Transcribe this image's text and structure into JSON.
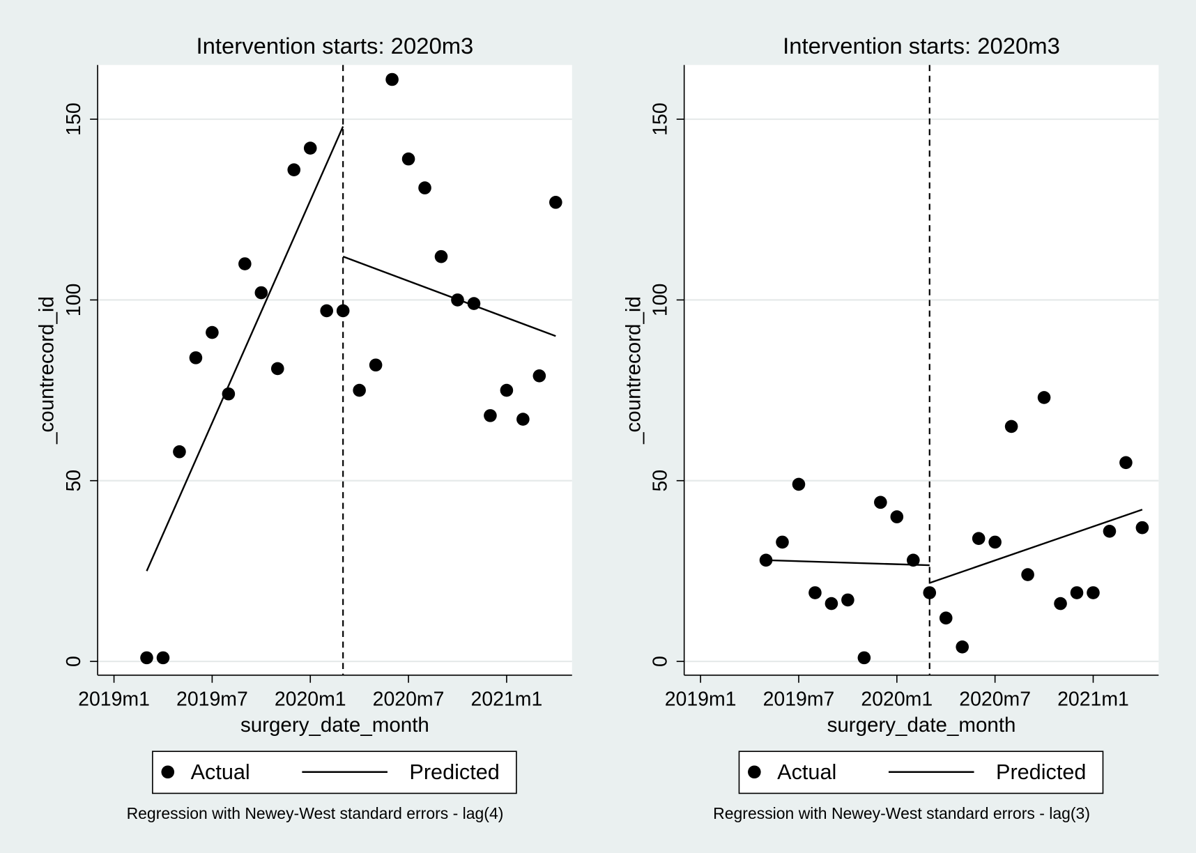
{
  "chart_data": [
    {
      "type": "scatter",
      "title": "Intervention starts: 2020m3",
      "xlabel": "surgery_date_month",
      "ylabel": "_countrecord_id",
      "note": "Regression with Newey-West standard errors - lag(4)",
      "xline": "2020m3",
      "xlim": [
        "2018m12",
        "2021m5"
      ],
      "xticks": [
        "2019m1",
        "2019m7",
        "2020m1",
        "2020m7",
        "2021m1"
      ],
      "ylim": [
        -3.8,
        165
      ],
      "yticks": [
        0,
        50,
        100,
        150
      ],
      "grid": true,
      "series": [
        {
          "name": "Actual",
          "mark": "point",
          "color": "#000000",
          "x": [
            "2019m3",
            "2019m4",
            "2019m5",
            "2019m6",
            "2019m7",
            "2019m8",
            "2019m9",
            "2019m10",
            "2019m11",
            "2019m12",
            "2020m1",
            "2020m2",
            "2020m3",
            "2020m4",
            "2020m5",
            "2020m6",
            "2020m7",
            "2020m8",
            "2020m9",
            "2020m10",
            "2020m11",
            "2020m12",
            "2021m1",
            "2021m2",
            "2021m3",
            "2021m4"
          ],
          "values": [
            1,
            1,
            58,
            84,
            91,
            74,
            110,
            102,
            81,
            136,
            142,
            97,
            97,
            75,
            82,
            161,
            139,
            131,
            112,
            100,
            99,
            68,
            75,
            67,
            79,
            127
          ]
        },
        {
          "name": "Predicted",
          "mark": "line",
          "color": "#000000",
          "segments": [
            {
              "x": [
                "2019m3",
                "2020m3"
              ],
              "values": [
                25,
                148
              ]
            },
            {
              "x": [
                "2020m3",
                "2021m4"
              ],
              "values": [
                112,
                90
              ]
            }
          ]
        }
      ]
    },
    {
      "type": "scatter",
      "title": "Intervention starts: 2020m3",
      "xlabel": "surgery_date_month",
      "ylabel": "_countrecord_id",
      "note": "Regression with Newey-West standard errors - lag(3)",
      "xline": "2020m3",
      "xlim": [
        "2018m12",
        "2021m5"
      ],
      "xticks": [
        "2019m1",
        "2019m7",
        "2020m1",
        "2020m7",
        "2021m1"
      ],
      "ylim": [
        -3.8,
        165
      ],
      "yticks": [
        0,
        50,
        100,
        150
      ],
      "grid": true,
      "series": [
        {
          "name": "Actual",
          "mark": "point",
          "color": "#000000",
          "x": [
            "2019m5",
            "2019m6",
            "2019m7",
            "2019m8",
            "2019m9",
            "2019m10",
            "2019m11",
            "2019m12",
            "2020m1",
            "2020m2",
            "2020m3",
            "2020m4",
            "2020m5",
            "2020m6",
            "2020m7",
            "2020m8",
            "2020m9",
            "2020m10",
            "2020m11",
            "2020m12",
            "2021m1",
            "2021m2",
            "2021m3",
            "2021m4"
          ],
          "values": [
            28,
            33,
            49,
            19,
            16,
            17,
            1,
            44,
            40,
            28,
            19,
            12,
            4,
            34,
            33,
            65,
            24,
            73,
            16,
            19,
            19,
            36,
            55,
            37
          ]
        },
        {
          "name": "Predicted",
          "mark": "line",
          "color": "#000000",
          "segments": [
            {
              "x": [
                "2019m5",
                "2020m3"
              ],
              "values": [
                28,
                26.6
              ]
            },
            {
              "x": [
                "2020m3",
                "2021m4"
              ],
              "values": [
                21.7,
                42
              ]
            }
          ]
        }
      ]
    }
  ]
}
